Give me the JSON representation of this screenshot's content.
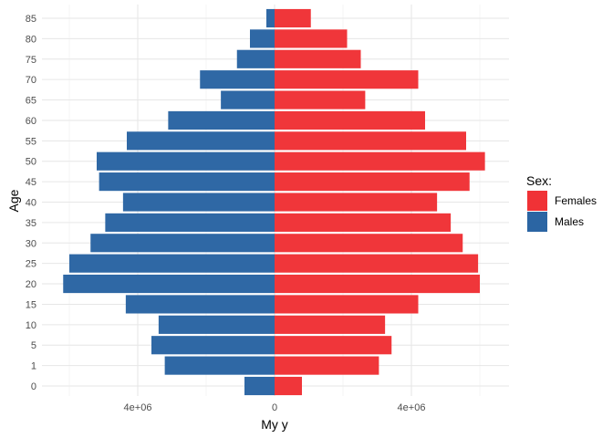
{
  "chart_data": {
    "type": "bar",
    "orientation": "horizontal",
    "stacking": "diverging",
    "categories": [
      "0",
      "1",
      "5",
      "10",
      "15",
      "20",
      "25",
      "30",
      "35",
      "40",
      "45",
      "50",
      "55",
      "60",
      "65",
      "70",
      "75",
      "80",
      "85"
    ],
    "series": [
      {
        "name": "Females",
        "color": "#f03236",
        "values": [
          800000,
          3050000,
          3420000,
          3230000,
          4200000,
          6000000,
          5950000,
          5500000,
          5150000,
          4750000,
          5700000,
          6150000,
          5600000,
          4400000,
          2650000,
          4200000,
          2520000,
          2120000,
          1060000
        ]
      },
      {
        "name": "Males",
        "color": "#2b65a3",
        "values": [
          -880000,
          -3210000,
          -3600000,
          -3390000,
          -4350000,
          -6180000,
          -6000000,
          -5380000,
          -4950000,
          -4430000,
          -5130000,
          -5200000,
          -4320000,
          -3110000,
          -1570000,
          -2180000,
          -1100000,
          -720000,
          -240000
        ]
      }
    ],
    "x_ticks": [
      {
        "value": -4000000,
        "label": "4e+06"
      },
      {
        "value": 0,
        "label": "0"
      },
      {
        "value": 4000000,
        "label": "4e+06"
      }
    ],
    "xlim": [
      -6400000,
      6800000
    ],
    "xlabel": "My y",
    "ylabel": "Age",
    "grid": true,
    "legend": {
      "title": "Sex:",
      "placement": "right"
    }
  }
}
